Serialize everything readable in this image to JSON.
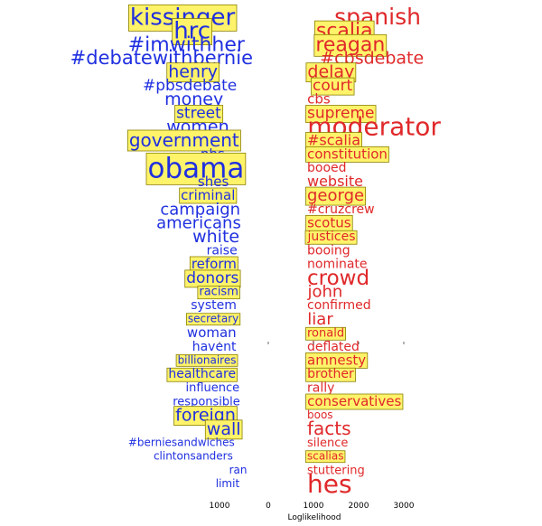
{
  "chart_data": {
    "type": "word-cloud-bars",
    "xlabel": "Loglikelihood",
    "x_ticks": [
      {
        "label": "1000",
        "value": -1000
      },
      {
        "label": "0",
        "value": 0
      },
      {
        "label": "1000",
        "value": 1000
      },
      {
        "label": "2000",
        "value": 2000
      },
      {
        "label": "3000",
        "value": 3000
      }
    ],
    "xlim": [
      -1200,
      3300
    ],
    "colors": {
      "left": "#1f2fe0",
      "right": "#e0282a",
      "highlight_fill": "#fff36a",
      "highlight_stroke": "#8a8000"
    },
    "left_words": [
      {
        "text": "kissinger",
        "value": -3430,
        "size": 26,
        "hl": true
      },
      {
        "text": "hrc",
        "value": -3010,
        "size": 26,
        "hl": true
      },
      {
        "text": "#imwithher",
        "value": -3260,
        "size": 22,
        "hl": false
      },
      {
        "text": "#debatewithbernie",
        "value": -4250,
        "size": 21,
        "hl": false
      },
      {
        "text": "henry",
        "value": -2970,
        "size": 19,
        "hl": true
      },
      {
        "text": "#pbsdebate",
        "value": -3110,
        "size": 17,
        "hl": false
      },
      {
        "text": "money",
        "value": -2930,
        "size": 19,
        "hl": false
      },
      {
        "text": "street",
        "value": -2720,
        "size": 17,
        "hl": true
      },
      {
        "text": "women",
        "value": -2760,
        "size": 19,
        "hl": false
      },
      {
        "text": "government",
        "value": -3360,
        "size": 20,
        "hl": true
      },
      {
        "text": "pbs",
        "value": -2110,
        "size": 15,
        "hl": false
      },
      {
        "text": "obama",
        "value": -2840,
        "size": 31,
        "hl": true
      },
      {
        "text": "shes",
        "value": -2080,
        "size": 15,
        "hl": false
      },
      {
        "text": "criminal",
        "value": -2310,
        "size": 15,
        "hl": true
      },
      {
        "text": "campaign",
        "value": -2650,
        "size": 18,
        "hl": false
      },
      {
        "text": "americans",
        "value": -2720,
        "size": 18,
        "hl": false
      },
      {
        "text": "white",
        "value": -1960,
        "size": 19,
        "hl": false
      },
      {
        "text": "raise",
        "value": -1700,
        "size": 14,
        "hl": false
      },
      {
        "text": "reform",
        "value": -2050,
        "size": 15,
        "hl": true
      },
      {
        "text": "donors",
        "value": -2110,
        "size": 17,
        "hl": true
      },
      {
        "text": "racism",
        "value": -1840,
        "size": 13,
        "hl": true
      },
      {
        "text": "system",
        "value": -2060,
        "size": 14,
        "hl": false
      },
      {
        "text": "secretary",
        "value": -2080,
        "size": 12,
        "hl": true
      },
      {
        "text": "woman",
        "value": -2150,
        "size": 15,
        "hl": false
      },
      {
        "text": "havent",
        "value": -2040,
        "size": 14,
        "hl": false
      },
      {
        "text": "billionaires",
        "value": -2360,
        "size": 12,
        "hl": true
      },
      {
        "text": "healthcare",
        "value": -2570,
        "size": 14,
        "hl": true
      },
      {
        "text": "influence",
        "value": -2110,
        "size": 13,
        "hl": false
      },
      {
        "text": "responsible",
        "value": -2380,
        "size": 13,
        "hl": false
      },
      {
        "text": "foreign",
        "value": -2420,
        "size": 19,
        "hl": true
      },
      {
        "text": "wall",
        "value": -1620,
        "size": 19,
        "hl": true
      },
      {
        "text": "#berniesandwiches",
        "value": -3480,
        "size": 12,
        "hl": false
      },
      {
        "text": "clintonsanders",
        "value": -2960,
        "size": 12,
        "hl": false
      },
      {
        "text": "ran",
        "value": -990,
        "size": 12,
        "hl": false
      },
      {
        "text": "limit",
        "value": -1450,
        "size": 12,
        "hl": false
      }
    ],
    "right_words": [
      {
        "text": "spanish",
        "value": 3950,
        "size": 25,
        "hl": false
      },
      {
        "text": "scalia",
        "value": 2490,
        "size": 22,
        "hl": true
      },
      {
        "text": "reagan",
        "value": 2750,
        "size": 22,
        "hl": true
      },
      {
        "text": "#cbsdebate",
        "value": 3700,
        "size": 19,
        "hl": false
      },
      {
        "text": "delay",
        "value": 1900,
        "size": 19,
        "hl": true
      },
      {
        "text": "court",
        "value": 1970,
        "size": 17,
        "hl": true
      },
      {
        "text": "cbs",
        "value": 1160,
        "size": 15,
        "hl": false
      },
      {
        "text": "supreme",
        "value": 2300,
        "size": 17,
        "hl": true
      },
      {
        "text": "moderator",
        "value": 3590,
        "size": 28,
        "hl": false
      },
      {
        "text": "#scalia",
        "value": 1600,
        "size": 16,
        "hl": true
      },
      {
        "text": "constitution",
        "value": 2570,
        "size": 15,
        "hl": true
      },
      {
        "text": "booed",
        "value": 1210,
        "size": 14,
        "hl": false
      },
      {
        "text": "website",
        "value": 1460,
        "size": 16,
        "hl": false
      },
      {
        "text": "george",
        "value": 1490,
        "size": 18,
        "hl": true
      },
      {
        "text": "#cruzcrew",
        "value": 1840,
        "size": 14,
        "hl": false
      },
      {
        "text": "scotus",
        "value": 1080,
        "size": 15,
        "hl": true
      },
      {
        "text": "justices",
        "value": 1230,
        "size": 14,
        "hl": true
      },
      {
        "text": "booing",
        "value": 1000,
        "size": 14,
        "hl": false
      },
      {
        "text": "nominate",
        "value": 1470,
        "size": 14,
        "hl": false
      },
      {
        "text": "crowd",
        "value": 1490,
        "size": 23,
        "hl": false
      },
      {
        "text": "john",
        "value": 870,
        "size": 18,
        "hl": false
      },
      {
        "text": "confirmed",
        "value": 1310,
        "size": 14,
        "hl": false
      },
      {
        "text": "liar",
        "value": 580,
        "size": 18,
        "hl": false
      },
      {
        "text": "ronald",
        "value": 950,
        "size": 13,
        "hl": true
      },
      {
        "text": "deflated",
        "value": 1170,
        "size": 14,
        "hl": false
      },
      {
        "text": "amnesty",
        "value": 1540,
        "size": 15,
        "hl": true
      },
      {
        "text": "brother",
        "value": 1140,
        "size": 14,
        "hl": true
      },
      {
        "text": "rally",
        "value": 400,
        "size": 14,
        "hl": false
      },
      {
        "text": "conservatives",
        "value": 2250,
        "size": 15,
        "hl": true
      },
      {
        "text": "boos",
        "value": 390,
        "size": 12,
        "hl": false
      },
      {
        "text": "facts",
        "value": 1060,
        "size": 20,
        "hl": false
      },
      {
        "text": "silence",
        "value": 960,
        "size": 13,
        "hl": false
      },
      {
        "text": "scalias",
        "value": 810,
        "size": 12,
        "hl": true
      },
      {
        "text": "stuttering",
        "value": 1250,
        "size": 13,
        "hl": false
      },
      {
        "text": "hes",
        "value": 1080,
        "size": 28,
        "hl": false
      }
    ]
  }
}
